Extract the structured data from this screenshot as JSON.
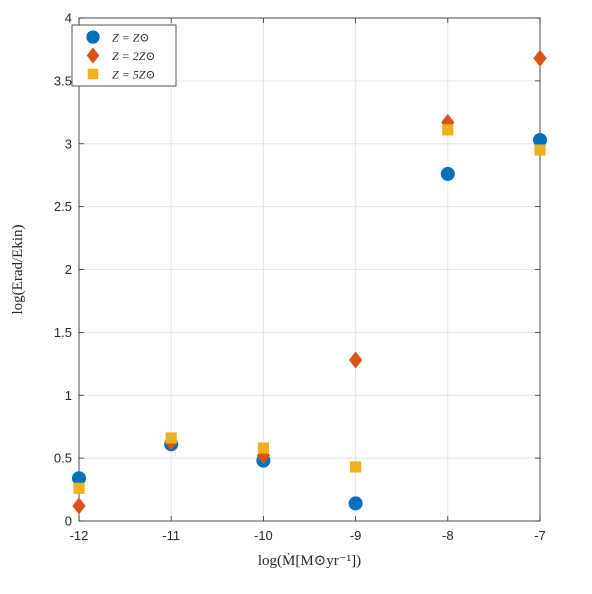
{
  "chart_data": {
    "type": "scatter",
    "title": "",
    "xlabel": "log(Ṁ[M⊙yr⁻¹])",
    "ylabel": "log(Erad/Ekin)",
    "xlim": [
      -12,
      -7
    ],
    "ylim": [
      0,
      4
    ],
    "x_ticks": [
      -12,
      -11,
      -10,
      -9,
      -8,
      -7
    ],
    "x_tick_labels": [
      "-12",
      "-11",
      "-10",
      "-9",
      "-8",
      "-7"
    ],
    "y_ticks": [
      0,
      0.5,
      1,
      1.5,
      2,
      2.5,
      3,
      3.5,
      4
    ],
    "y_tick_labels": [
      "0",
      "0.5",
      "1",
      "1.5",
      "2",
      "2.5",
      "3",
      "3.5",
      "4"
    ],
    "grid": true,
    "legend_position": "top-left",
    "series": [
      {
        "name": "Z = Z⊙",
        "marker": "circle",
        "color": "#0072BD",
        "x": [
          -12,
          -11,
          -10,
          -9,
          -8,
          -7
        ],
        "y": [
          0.34,
          0.61,
          0.48,
          0.14,
          2.76,
          3.03
        ]
      },
      {
        "name": "Z = 2Z⊙",
        "marker": "diamond",
        "color": "#D95319",
        "x": [
          -12,
          -11,
          -10,
          -9,
          -8,
          -7
        ],
        "y": [
          0.12,
          0.63,
          0.52,
          1.28,
          3.17,
          3.68
        ]
      },
      {
        "name": "Z = 5Z⊙",
        "marker": "square",
        "color": "#EDB120",
        "x": [
          -12,
          -11,
          -10,
          -9,
          -8,
          -7
        ],
        "y": [
          0.26,
          0.66,
          0.58,
          0.43,
          3.11,
          2.95
        ]
      }
    ]
  }
}
